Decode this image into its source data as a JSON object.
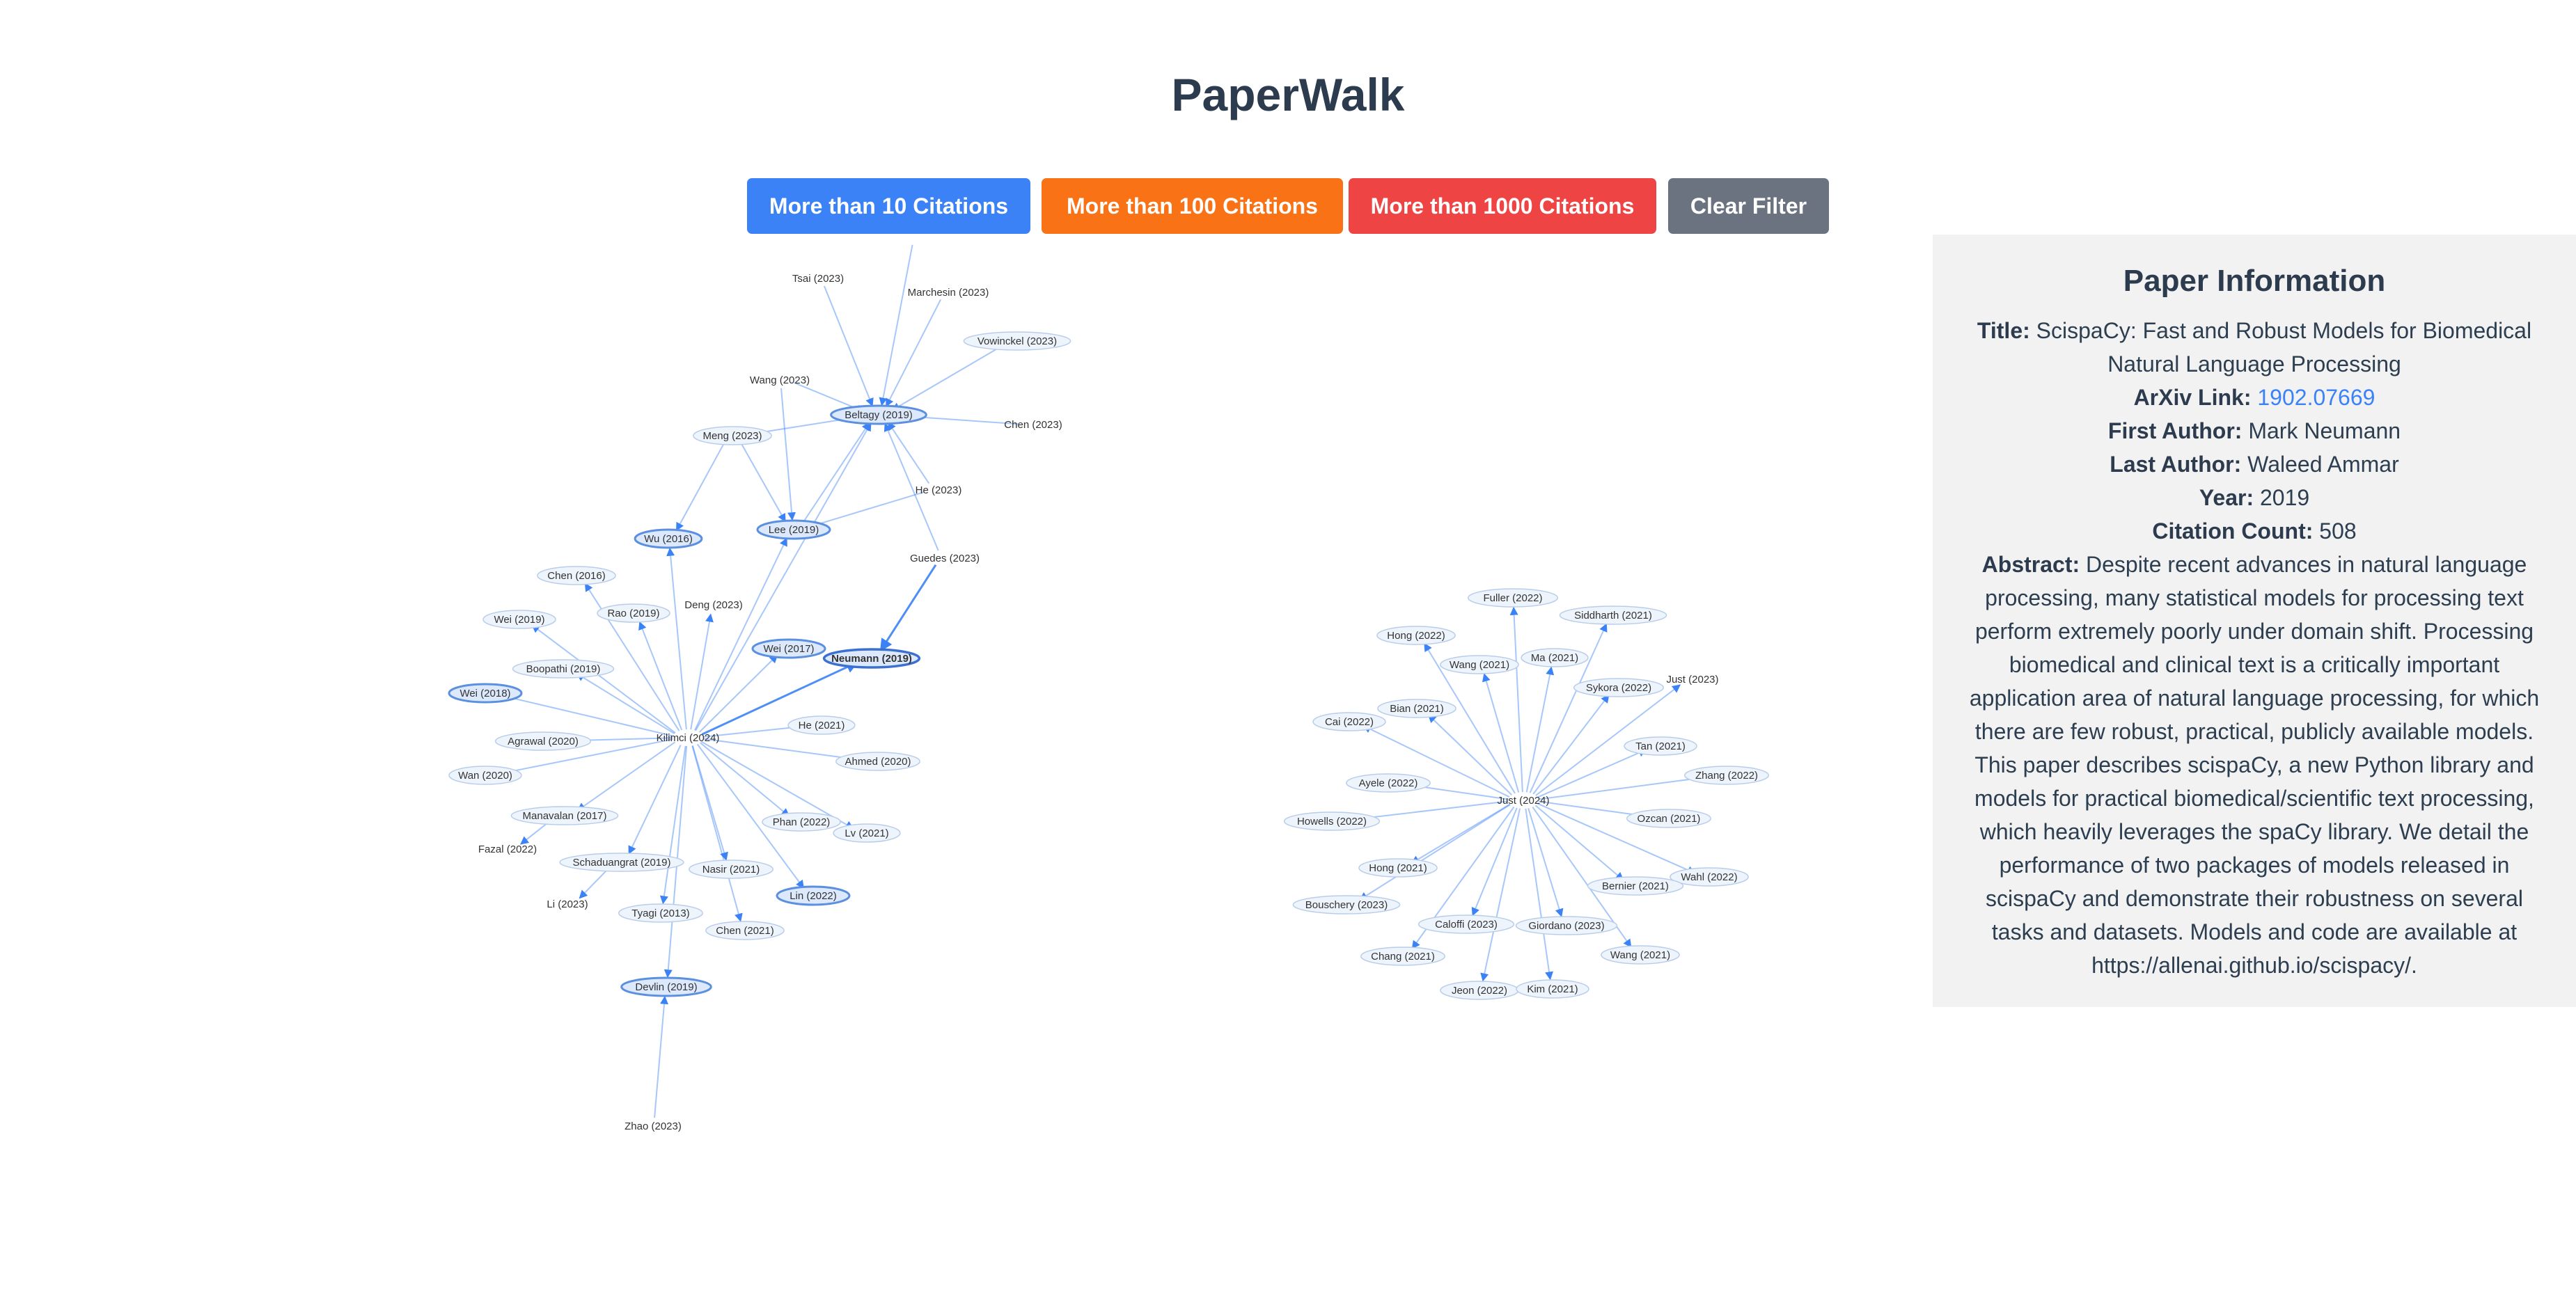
{
  "app": {
    "title": "PaperWalk"
  },
  "filters": {
    "gt10": {
      "label": "More than 10 Citations",
      "color": "#3b82f6"
    },
    "gt100": {
      "label": "More than 100 Citations",
      "color": "#f97316"
    },
    "gt1000": {
      "label": "More than 1000 Citations",
      "color": "#ef4444"
    },
    "clear": {
      "label": "Clear Filter",
      "color": "#6b7280"
    }
  },
  "graph": {
    "clusterA": {
      "hub": "Kilimci (2024)",
      "selected": "Neumann (2019)",
      "nodes": [
        "Tsai (2023)",
        "Marchesin (2023)",
        "Vowinckel (2023)",
        "Wang (2023)",
        "Beltagy (2019)",
        "Chen (2023)",
        "Meng (2023)",
        "He (2023)",
        "Wu (2016)",
        "Lee (2019)",
        "Guedes (2023)",
        "Chen (2016)",
        "Deng (2023)",
        "Rao (2019)",
        "Wei (2019)",
        "Wei (2017)",
        "Neumann (2019)",
        "Boopathi (2019)",
        "Wei (2018)",
        "He (2021)",
        "Agrawal (2020)",
        "Kilimci (2024)",
        "Ahmed (2020)",
        "Wan (2020)",
        "Manavalan (2017)",
        "Phan (2022)",
        "Lv (2021)",
        "Fazal (2022)",
        "Schaduangrat (2019)",
        "Nasir (2021)",
        "Lin (2022)",
        "Li (2023)",
        "Tyagi (2013)",
        "Chen (2021)",
        "Devlin (2019)",
        "Zhao (2023)"
      ]
    },
    "clusterB": {
      "hub": "Just (2024)",
      "nodes": [
        "Fuller (2022)",
        "Siddharth (2021)",
        "Hong (2022)",
        "Wang (2021)",
        "Ma (2021)",
        "Just (2023)",
        "Sykora (2022)",
        "Bian (2021)",
        "Cai (2022)",
        "Tan (2021)",
        "Zhang (2022)",
        "Ayele (2022)",
        "Just (2024)",
        "Howells (2022)",
        "Ozcan (2021)",
        "Hong (2021)",
        "Wahl (2022)",
        "Bernier (2021)",
        "Bouschery (2023)",
        "Caloffi (2023)",
        "Giordano (2023)",
        "Chang (2021)",
        "Wang (2021)",
        "Jeon (2022)",
        "Kim (2021)"
      ]
    }
  },
  "paper": {
    "heading": "Paper Information",
    "title_label": "Title:",
    "title": "ScispaCy: Fast and Robust Models for Biomedical Natural Language Processing",
    "arxiv_label": "ArXiv Link:",
    "arxiv_id": "1902.07669",
    "first_author_label": "First Author:",
    "first_author": "Mark Neumann",
    "last_author_label": "Last Author:",
    "last_author": "Waleed Ammar",
    "year_label": "Year:",
    "year": "2019",
    "citation_label": "Citation Count:",
    "citation_count": "508",
    "abstract_label": "Abstract:",
    "abstract": "Despite recent advances in natural language processing, many statistical models for processing text perform extremely poorly under domain shift. Processing biomedical and clinical text is a critically important application area of natural language processing, for which there are few robust, practical, publicly available models. This paper describes scispaCy, a new Python library and models for practical biomedical/scientific text processing, which heavily leverages the spaCy library. We detail the performance of two packages of models released in scispaCy and demonstrate their robustness on several tasks and datasets. Models and code are available at https://allenai.github.io/scispacy/."
  }
}
